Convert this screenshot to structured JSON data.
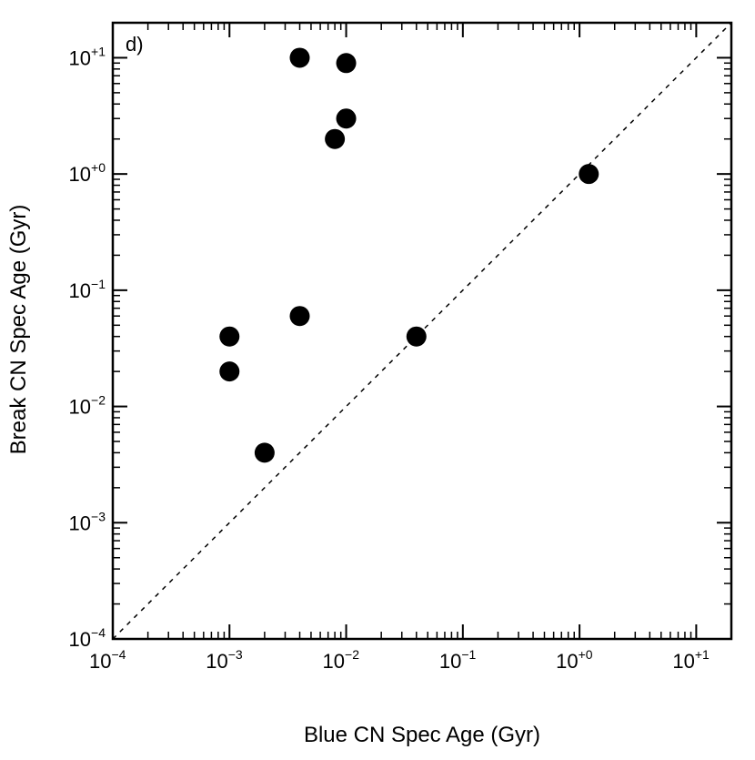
{
  "chart_data": {
    "type": "scatter",
    "panel_label": "d)",
    "xlabel": "Blue CN Spec Age (Gyr)",
    "ylabel": "Break CN Spec Age (Gyr)",
    "xscale": "log",
    "yscale": "log",
    "xlim": [
      0.0001,
      20
    ],
    "ylim": [
      0.0001,
      20
    ],
    "x_tick_labels": [
      {
        "base": "10",
        "exp": "−4"
      },
      {
        "base": "10",
        "exp": "−3"
      },
      {
        "base": "10",
        "exp": "−2"
      },
      {
        "base": "10",
        "exp": "−1"
      },
      {
        "base": "10",
        "exp": "+0"
      },
      {
        "base": "10",
        "exp": "+1"
      }
    ],
    "y_tick_labels": [
      {
        "base": "10",
        "exp": "−4"
      },
      {
        "base": "10",
        "exp": "−3"
      },
      {
        "base": "10",
        "exp": "−2"
      },
      {
        "base": "10",
        "exp": "−1"
      },
      {
        "base": "10",
        "exp": "+0"
      },
      {
        "base": "10",
        "exp": "+1"
      }
    ],
    "reference_line": "one-to-one",
    "grid": false,
    "points": [
      {
        "x": 0.004,
        "y": 10
      },
      {
        "x": 0.01,
        "y": 9
      },
      {
        "x": 0.01,
        "y": 3
      },
      {
        "x": 0.008,
        "y": 2
      },
      {
        "x": 1.2,
        "y": 1
      },
      {
        "x": 0.004,
        "y": 0.06
      },
      {
        "x": 0.001,
        "y": 0.04
      },
      {
        "x": 0.04,
        "y": 0.04
      },
      {
        "x": 0.001,
        "y": 0.02
      },
      {
        "x": 0.002,
        "y": 0.004
      }
    ],
    "marker_color": "#000000"
  }
}
